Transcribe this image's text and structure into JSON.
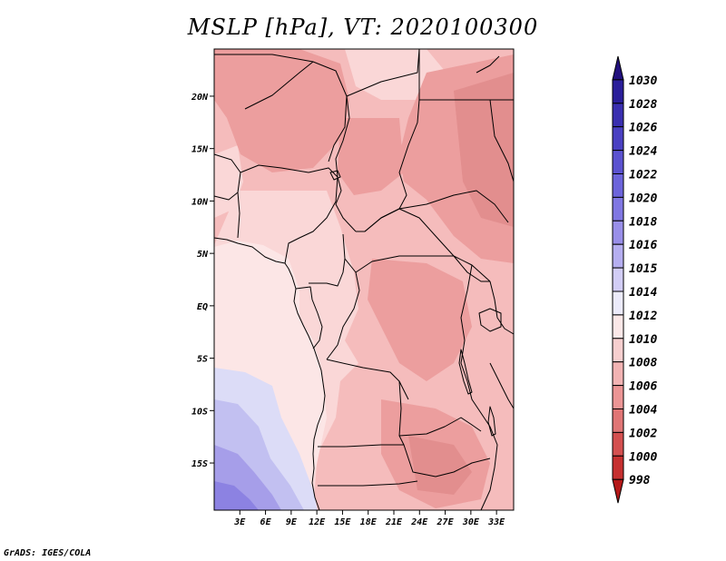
{
  "title": "MSLP [hPa], VT: 2020100300",
  "credit": "GrADS: IGES/COLA",
  "map": {
    "lat_labels": [
      "20N",
      "15N",
      "10N",
      "5N",
      "EQ",
      "5S",
      "10S",
      "15S"
    ],
    "lon_labels": [
      "3E",
      "6E",
      "9E",
      "12E",
      "15E",
      "18E",
      "21E",
      "24E",
      "27E",
      "30E",
      "33E"
    ],
    "extent": {
      "lon_min": 0,
      "lon_max": 35,
      "lat_min": -19.5,
      "lat_max": 24.5
    }
  },
  "colorbar": {
    "labels": [
      "1030",
      "1028",
      "1026",
      "1024",
      "1022",
      "1020",
      "1018",
      "1016",
      "1015",
      "1014",
      "1012",
      "1010",
      "1008",
      "1006",
      "1004",
      "1002",
      "1000",
      "998"
    ],
    "colors": [
      "#22107e",
      "#2a1e9a",
      "#3a2fb0",
      "#4a40c2",
      "#5b52d0",
      "#6c64db",
      "#8077e3",
      "#998fe9",
      "#b5aef0",
      "#d2cdf6",
      "#ecebfb",
      "#fbe8e8",
      "#f7cfcf",
      "#f2b3b3",
      "#ec9595",
      "#e07575",
      "#d45050",
      "#c63030",
      "#b51818"
    ]
  },
  "colors": {
    "border": "#000000",
    "pressure_1006": "#e28e8e",
    "pressure_1008": "#ec9e9e",
    "pressure_1010": "#f5bcbc",
    "pressure_1012": "#fad7d7",
    "pressure_1014": "#fce6e6",
    "pressure_1016": "#dcdcf7",
    "pressure_1018": "#c2c0f1",
    "pressure_1020": "#a69ee9",
    "pressure_1022": "#8c82e2"
  }
}
